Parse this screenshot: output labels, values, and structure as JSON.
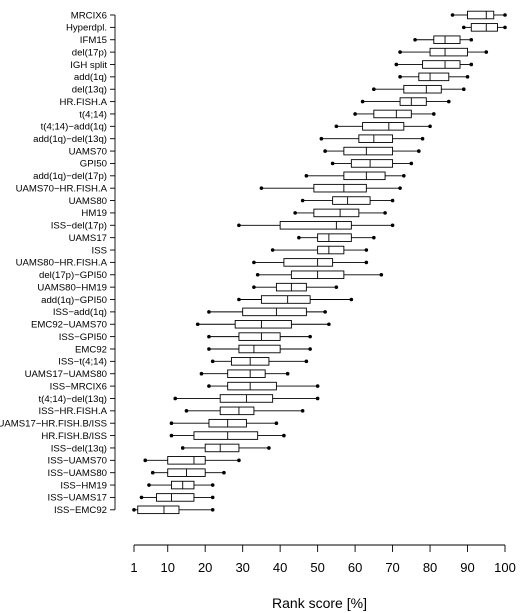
{
  "chart_data": {
    "type": "boxplot",
    "orientation": "horizontal",
    "xlabel": "Rank score [%]",
    "xlim": [
      1,
      100
    ],
    "xticks": [
      1,
      10,
      20,
      30,
      40,
      50,
      60,
      70,
      80,
      90,
      100
    ],
    "grid": false,
    "series": [
      {
        "name": "MRCIX6",
        "min": 86,
        "q1": 90,
        "median": 95,
        "q3": 97,
        "max": 100
      },
      {
        "name": "Hyperdpl.",
        "min": 89,
        "q1": 91,
        "median": 95,
        "q3": 98,
        "max": 100
      },
      {
        "name": "IFM15",
        "min": 76,
        "q1": 81,
        "median": 84,
        "q3": 88,
        "max": 91
      },
      {
        "name": "del(17p)",
        "min": 72,
        "q1": 80,
        "median": 84,
        "q3": 90,
        "max": 95
      },
      {
        "name": "IGH split",
        "min": 71,
        "q1": 78,
        "median": 84,
        "q3": 88,
        "max": 91
      },
      {
        "name": "add(1q)",
        "min": 72,
        "q1": 77,
        "median": 80,
        "q3": 85,
        "max": 90
      },
      {
        "name": "del(13q)",
        "min": 65,
        "q1": 73,
        "median": 79,
        "q3": 83,
        "max": 89
      },
      {
        "name": "HR.FISH.A",
        "min": 62,
        "q1": 72,
        "median": 75,
        "q3": 79,
        "max": 85
      },
      {
        "name": "t(4;14)",
        "min": 60,
        "q1": 65,
        "median": 71,
        "q3": 75,
        "max": 81
      },
      {
        "name": "t(4;14)−add(1q)",
        "min": 55,
        "q1": 62,
        "median": 69,
        "q3": 73,
        "max": 80
      },
      {
        "name": "add(1q)−del(13q)",
        "min": 51,
        "q1": 61,
        "median": 65,
        "q3": 70,
        "max": 78
      },
      {
        "name": "UAMS70",
        "min": 52,
        "q1": 57,
        "median": 63,
        "q3": 70,
        "max": 77
      },
      {
        "name": "GPI50",
        "min": 54,
        "q1": 59,
        "median": 64,
        "q3": 70,
        "max": 75
      },
      {
        "name": "add(1q)−del(17p)",
        "min": 47,
        "q1": 57,
        "median": 63,
        "q3": 68,
        "max": 73
      },
      {
        "name": "UAMS70−HR.FISH.A",
        "min": 35,
        "q1": 49,
        "median": 57,
        "q3": 63,
        "max": 72
      },
      {
        "name": "UAMS80",
        "min": 46,
        "q1": 54,
        "median": 58,
        "q3": 64,
        "max": 70
      },
      {
        "name": "HM19",
        "min": 44,
        "q1": 49,
        "median": 56,
        "q3": 61,
        "max": 68
      },
      {
        "name": "ISS−del(17p)",
        "min": 29,
        "q1": 40,
        "median": 55,
        "q3": 59,
        "max": 70
      },
      {
        "name": "UAMS17",
        "min": 45,
        "q1": 50,
        "median": 53,
        "q3": 59,
        "max": 65
      },
      {
        "name": "ISS",
        "min": 38,
        "q1": 50,
        "median": 53,
        "q3": 57,
        "max": 63
      },
      {
        "name": "UAMS80−HR.FISH.A",
        "min": 33,
        "q1": 41,
        "median": 50,
        "q3": 54,
        "max": 63
      },
      {
        "name": "del(17p)−GPI50",
        "min": 34,
        "q1": 43,
        "median": 50,
        "q3": 57,
        "max": 67
      },
      {
        "name": "UAMS80−HM19",
        "min": 33,
        "q1": 39,
        "median": 43,
        "q3": 47,
        "max": 55
      },
      {
        "name": "add(1q)−GPI50",
        "min": 29,
        "q1": 35,
        "median": 42,
        "q3": 48,
        "max": 59
      },
      {
        "name": "ISS−add(1q)",
        "min": 21,
        "q1": 30,
        "median": 39,
        "q3": 47,
        "max": 52
      },
      {
        "name": "EMC92−UAMS70",
        "min": 18,
        "q1": 28,
        "median": 35,
        "q3": 43,
        "max": 53
      },
      {
        "name": "ISS−GPI50",
        "min": 21,
        "q1": 29,
        "median": 35,
        "q3": 40,
        "max": 48
      },
      {
        "name": "EMC92",
        "min": 21,
        "q1": 29,
        "median": 33,
        "q3": 40,
        "max": 48
      },
      {
        "name": "ISS−t(4;14)",
        "min": 22,
        "q1": 27,
        "median": 32,
        "q3": 37,
        "max": 47
      },
      {
        "name": "UAMS17−UAMS80",
        "min": 19,
        "q1": 26,
        "median": 32,
        "q3": 36,
        "max": 42
      },
      {
        "name": "ISS−MRCIX6",
        "min": 21,
        "q1": 26,
        "median": 32,
        "q3": 39,
        "max": 50
      },
      {
        "name": "t(4;14)−del(13q)",
        "min": 12,
        "q1": 24,
        "median": 31,
        "q3": 38,
        "max": 50
      },
      {
        "name": "ISS−HR.FISH.A",
        "min": 15,
        "q1": 24,
        "median": 29,
        "q3": 33,
        "max": 46
      },
      {
        "name": "UAMS17−HR.FISH.B/ISS",
        "min": 11,
        "q1": 21,
        "median": 26,
        "q3": 31,
        "max": 39
      },
      {
        "name": "HR.FISH.B/ISS",
        "min": 11,
        "q1": 17,
        "median": 26,
        "q3": 34,
        "max": 41
      },
      {
        "name": "ISS−del(13q)",
        "min": 14,
        "q1": 20,
        "median": 24,
        "q3": 29,
        "max": 37
      },
      {
        "name": "ISS−UAMS70",
        "min": 4,
        "q1": 10,
        "median": 17,
        "q3": 20,
        "max": 29
      },
      {
        "name": "ISS−UAMS80",
        "min": 6,
        "q1": 10,
        "median": 15,
        "q3": 20,
        "max": 25
      },
      {
        "name": "ISS−HM19",
        "min": 5,
        "q1": 11,
        "median": 14,
        "q3": 17,
        "max": 22
      },
      {
        "name": "ISS−UAMS17",
        "min": 3,
        "q1": 7,
        "median": 11,
        "q3": 17,
        "max": 22
      },
      {
        "name": "ISS−EMC92",
        "min": 1,
        "q1": 2,
        "median": 9,
        "q3": 13,
        "max": 22
      }
    ]
  }
}
